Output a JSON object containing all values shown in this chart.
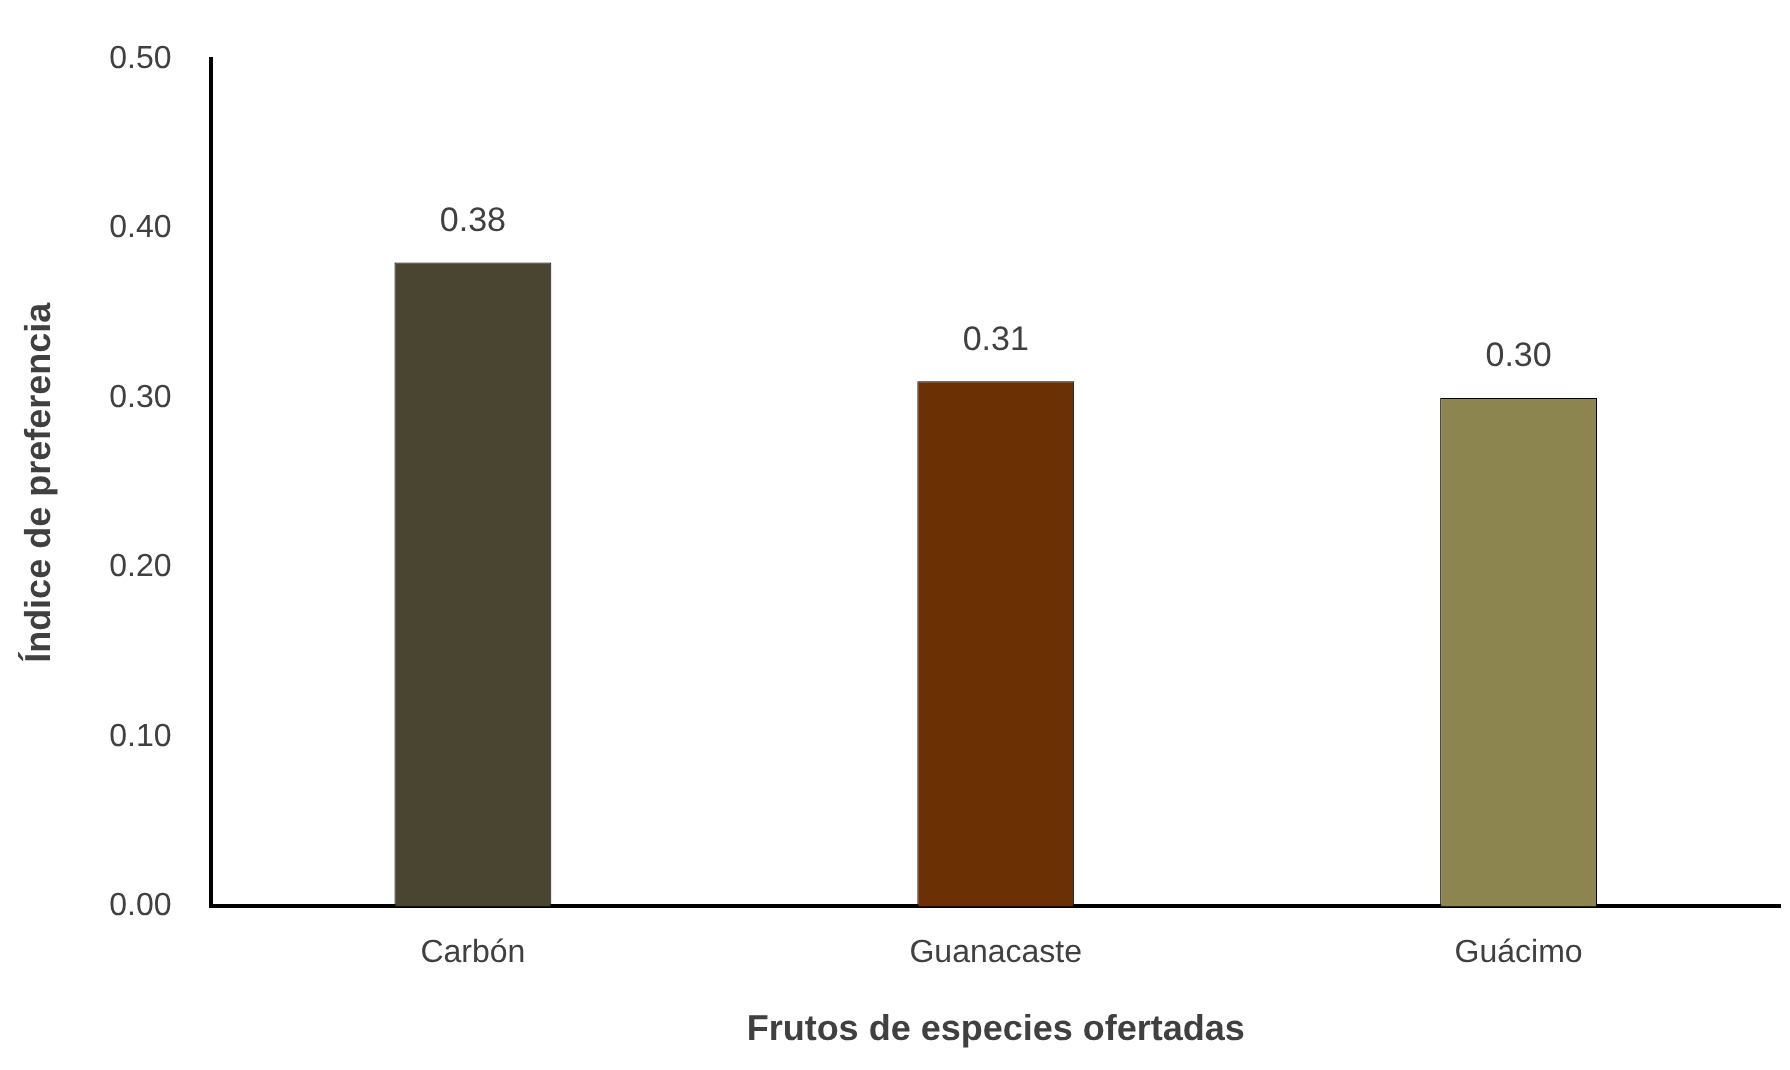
{
  "chart_data": {
    "type": "bar",
    "xlabel": "Frutos de especies ofertadas",
    "ylabel": "Índice de preferencia",
    "categories": [
      "Carbón",
      "Guanacaste",
      "Guácimo"
    ],
    "values": [
      0.38,
      0.31,
      0.3
    ],
    "colors": [
      "#4a4530",
      "#6b3003",
      "#8c8550"
    ],
    "value_labels": [
      "0.38",
      "0.31",
      "0.30"
    ],
    "ylim": [
      0,
      0.5
    ],
    "yticks": [
      {
        "value": 0,
        "label": "0.00"
      },
      {
        "value": 0.1,
        "label": "0.10"
      },
      {
        "value": 0.2,
        "label": "0.20"
      },
      {
        "value": 0.3,
        "label": "0.30"
      },
      {
        "value": 0.4,
        "label": "0.40"
      },
      {
        "value": 0.5,
        "label": "0.50"
      }
    ],
    "grid": false,
    "legend": false
  }
}
